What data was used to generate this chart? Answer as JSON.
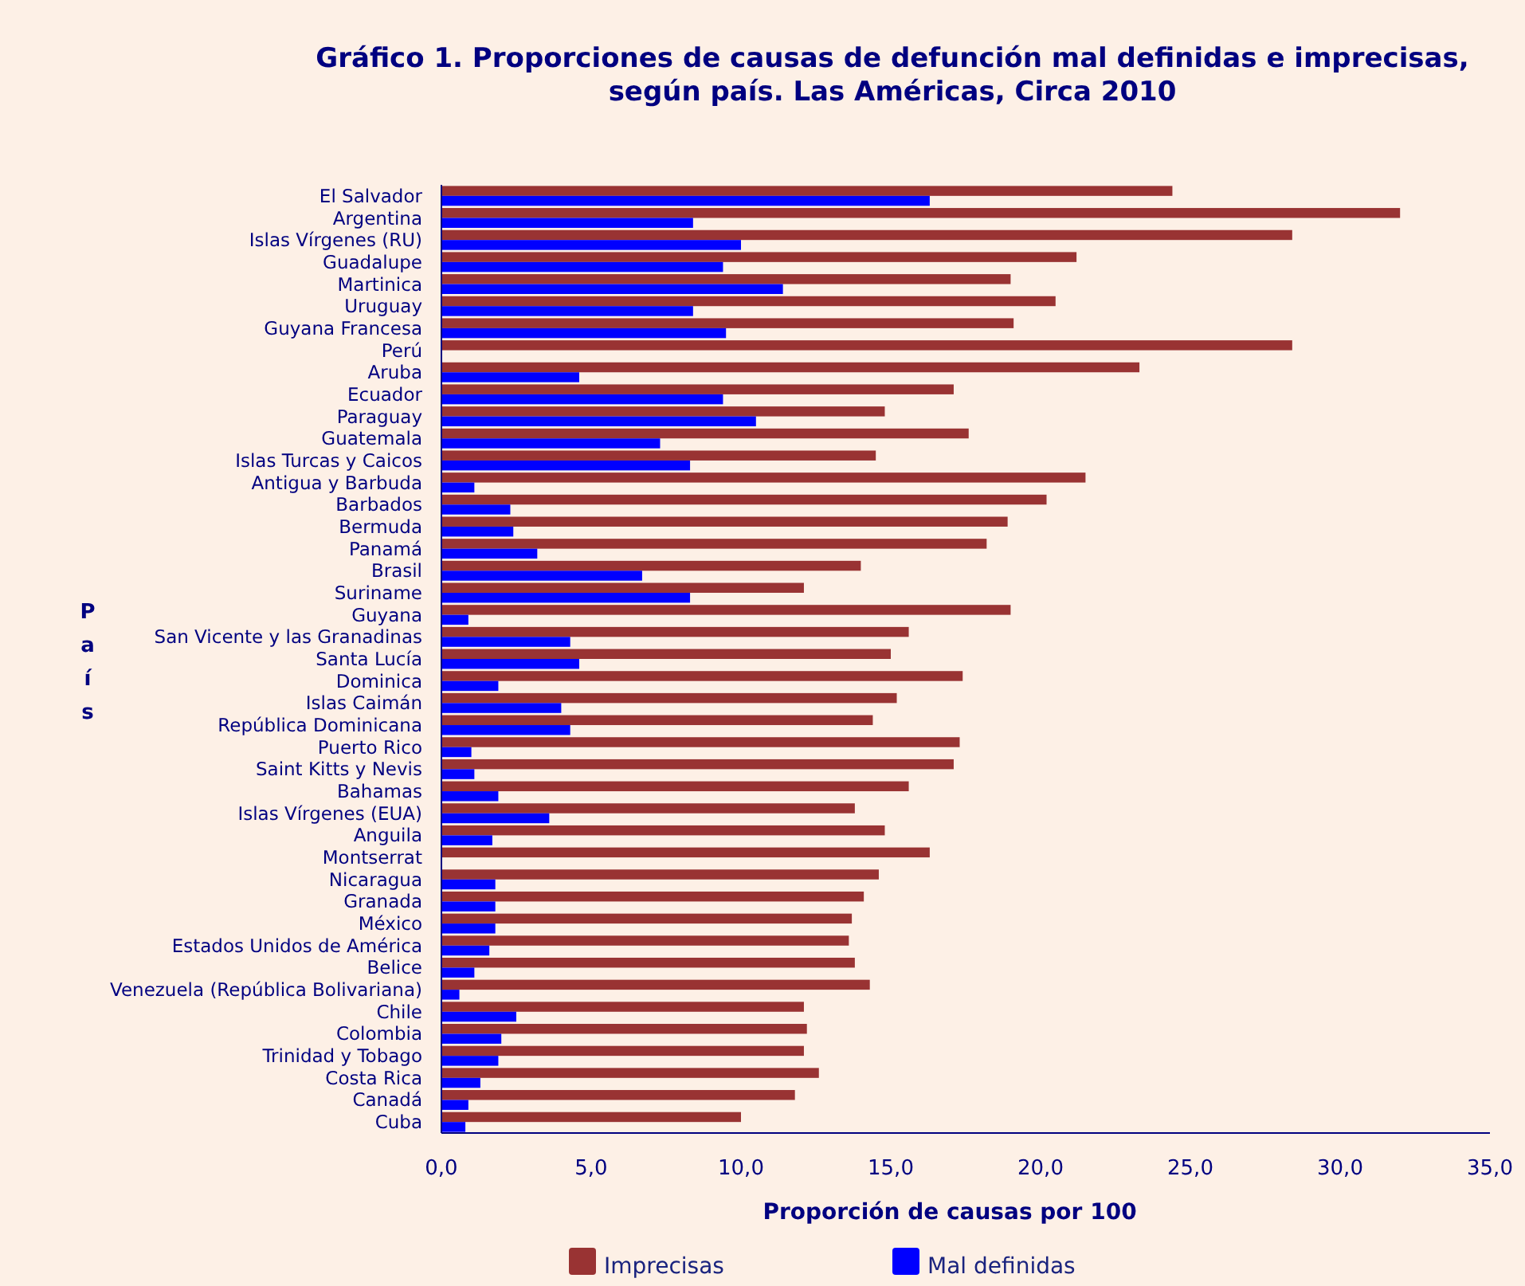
{
  "chart_data": {
    "type": "bar",
    "orientation": "horizontal",
    "title": "Gráfico 1. Proporciones de causas de defunción mal definidas e imprecisas, según país. Las Américas, Circa 2010",
    "xlabel": "Proporción de causas por 100",
    "ylabel": "País",
    "categories": [
      "El Salvador",
      "Argentina",
      "Islas Vírgenes (RU)",
      "Guadalupe",
      "Martinica",
      "Uruguay",
      "Guyana Francesa",
      "Perú",
      "Aruba",
      "Ecuador",
      "Paraguay",
      "Guatemala",
      "Islas Turcas y Caicos",
      "Antigua y Barbuda",
      "Barbados",
      "Bermuda",
      "Panamá",
      "Brasil",
      "Suriname",
      "Guyana",
      "San Vicente y las Granadinas",
      "Santa Lucía",
      "Dominica",
      "Islas Caimán",
      "República Dominicana",
      "Puerto Rico",
      "Saint Kitts y Nevis",
      "Bahamas",
      "Islas Vírgenes (EUA)",
      "Anguila",
      "Montserrat",
      "Nicaragua",
      "Granada",
      "México",
      "Estados Unidos de América",
      "Belice",
      "Venezuela (República Bolivariana)",
      "Chile",
      "Colombia",
      "Trinidad y Tobago",
      "Costa Rica",
      "Canadá",
      "Cuba"
    ],
    "series": [
      {
        "name": "Imprecisas",
        "color": "#993333",
        "values": [
          24.4,
          32.0,
          28.4,
          21.2,
          19.0,
          20.5,
          19.1,
          28.4,
          23.3,
          17.1,
          14.8,
          17.6,
          14.5,
          21.5,
          20.2,
          18.9,
          18.2,
          14.0,
          12.1,
          19.0,
          15.6,
          15.0,
          17.4,
          15.2,
          14.4,
          17.3,
          17.1,
          15.6,
          13.8,
          14.8,
          16.3,
          14.6,
          14.1,
          13.7,
          13.6,
          13.8,
          14.3,
          12.1,
          12.2,
          12.1,
          12.6,
          11.8,
          10.0
        ]
      },
      {
        "name": "Mal definidas",
        "color": "#0000ff",
        "values": [
          16.3,
          8.4,
          10.0,
          9.4,
          11.4,
          8.4,
          9.5,
          0,
          4.6,
          9.4,
          10.5,
          7.3,
          8.3,
          1.1,
          2.3,
          2.4,
          3.2,
          6.7,
          8.3,
          0.9,
          4.3,
          4.6,
          1.9,
          4.0,
          4.3,
          1.0,
          1.1,
          1.9,
          3.6,
          1.7,
          0,
          1.8,
          1.8,
          1.8,
          1.6,
          1.1,
          0.6,
          2.5,
          2.0,
          1.9,
          1.3,
          0.9,
          0.8
        ]
      }
    ],
    "xlim": [
      0,
      35
    ],
    "xticks": [
      {
        "value": 0,
        "label": "0,0"
      },
      {
        "value": 5,
        "label": "5,0"
      },
      {
        "value": 10,
        "label": "10,0"
      },
      {
        "value": 15,
        "label": "15,0"
      },
      {
        "value": 20,
        "label": "20,0"
      },
      {
        "value": 25,
        "label": "25,0"
      },
      {
        "value": 30,
        "label": "30,0"
      },
      {
        "value": 35,
        "label": "35,0"
      }
    ],
    "grid": false,
    "legend": "bottom"
  }
}
